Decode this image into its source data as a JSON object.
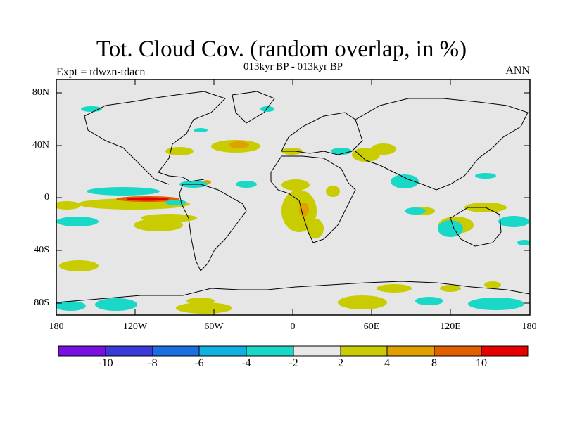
{
  "title": "Tot. Cloud Cov. (random overlap, in %)",
  "subtitle": "013kyr BP - 013kyr BP",
  "left_label": "Expt = tdwzn-tdacn",
  "right_label": "ANN",
  "lat_ticks": [
    "80N",
    "40N",
    "0",
    "40S",
    "80S"
  ],
  "lon_ticks": [
    "180",
    "120W",
    "60W",
    "0",
    "60E",
    "120E",
    "180"
  ],
  "colorbar": {
    "colors": [
      "#7a10e0",
      "#3a3ad8",
      "#1a70e0",
      "#10b0e0",
      "#1ad8c8",
      "#e8e8e8",
      "#c8cc00",
      "#e0a000",
      "#e06000",
      "#e80000"
    ],
    "labels": [
      "-10",
      "-8",
      "-6",
      "-4",
      "-2",
      "2",
      "4",
      "8",
      "10"
    ]
  },
  "colors": {
    "background": "#e6e6e6",
    "positive_light": "#c8cc00",
    "positive_mid": "#e0a000",
    "positive_high": "#e06000",
    "positive_max": "#e80000",
    "negative_light": "#1ad8c8",
    "coastline": "#000000"
  }
}
